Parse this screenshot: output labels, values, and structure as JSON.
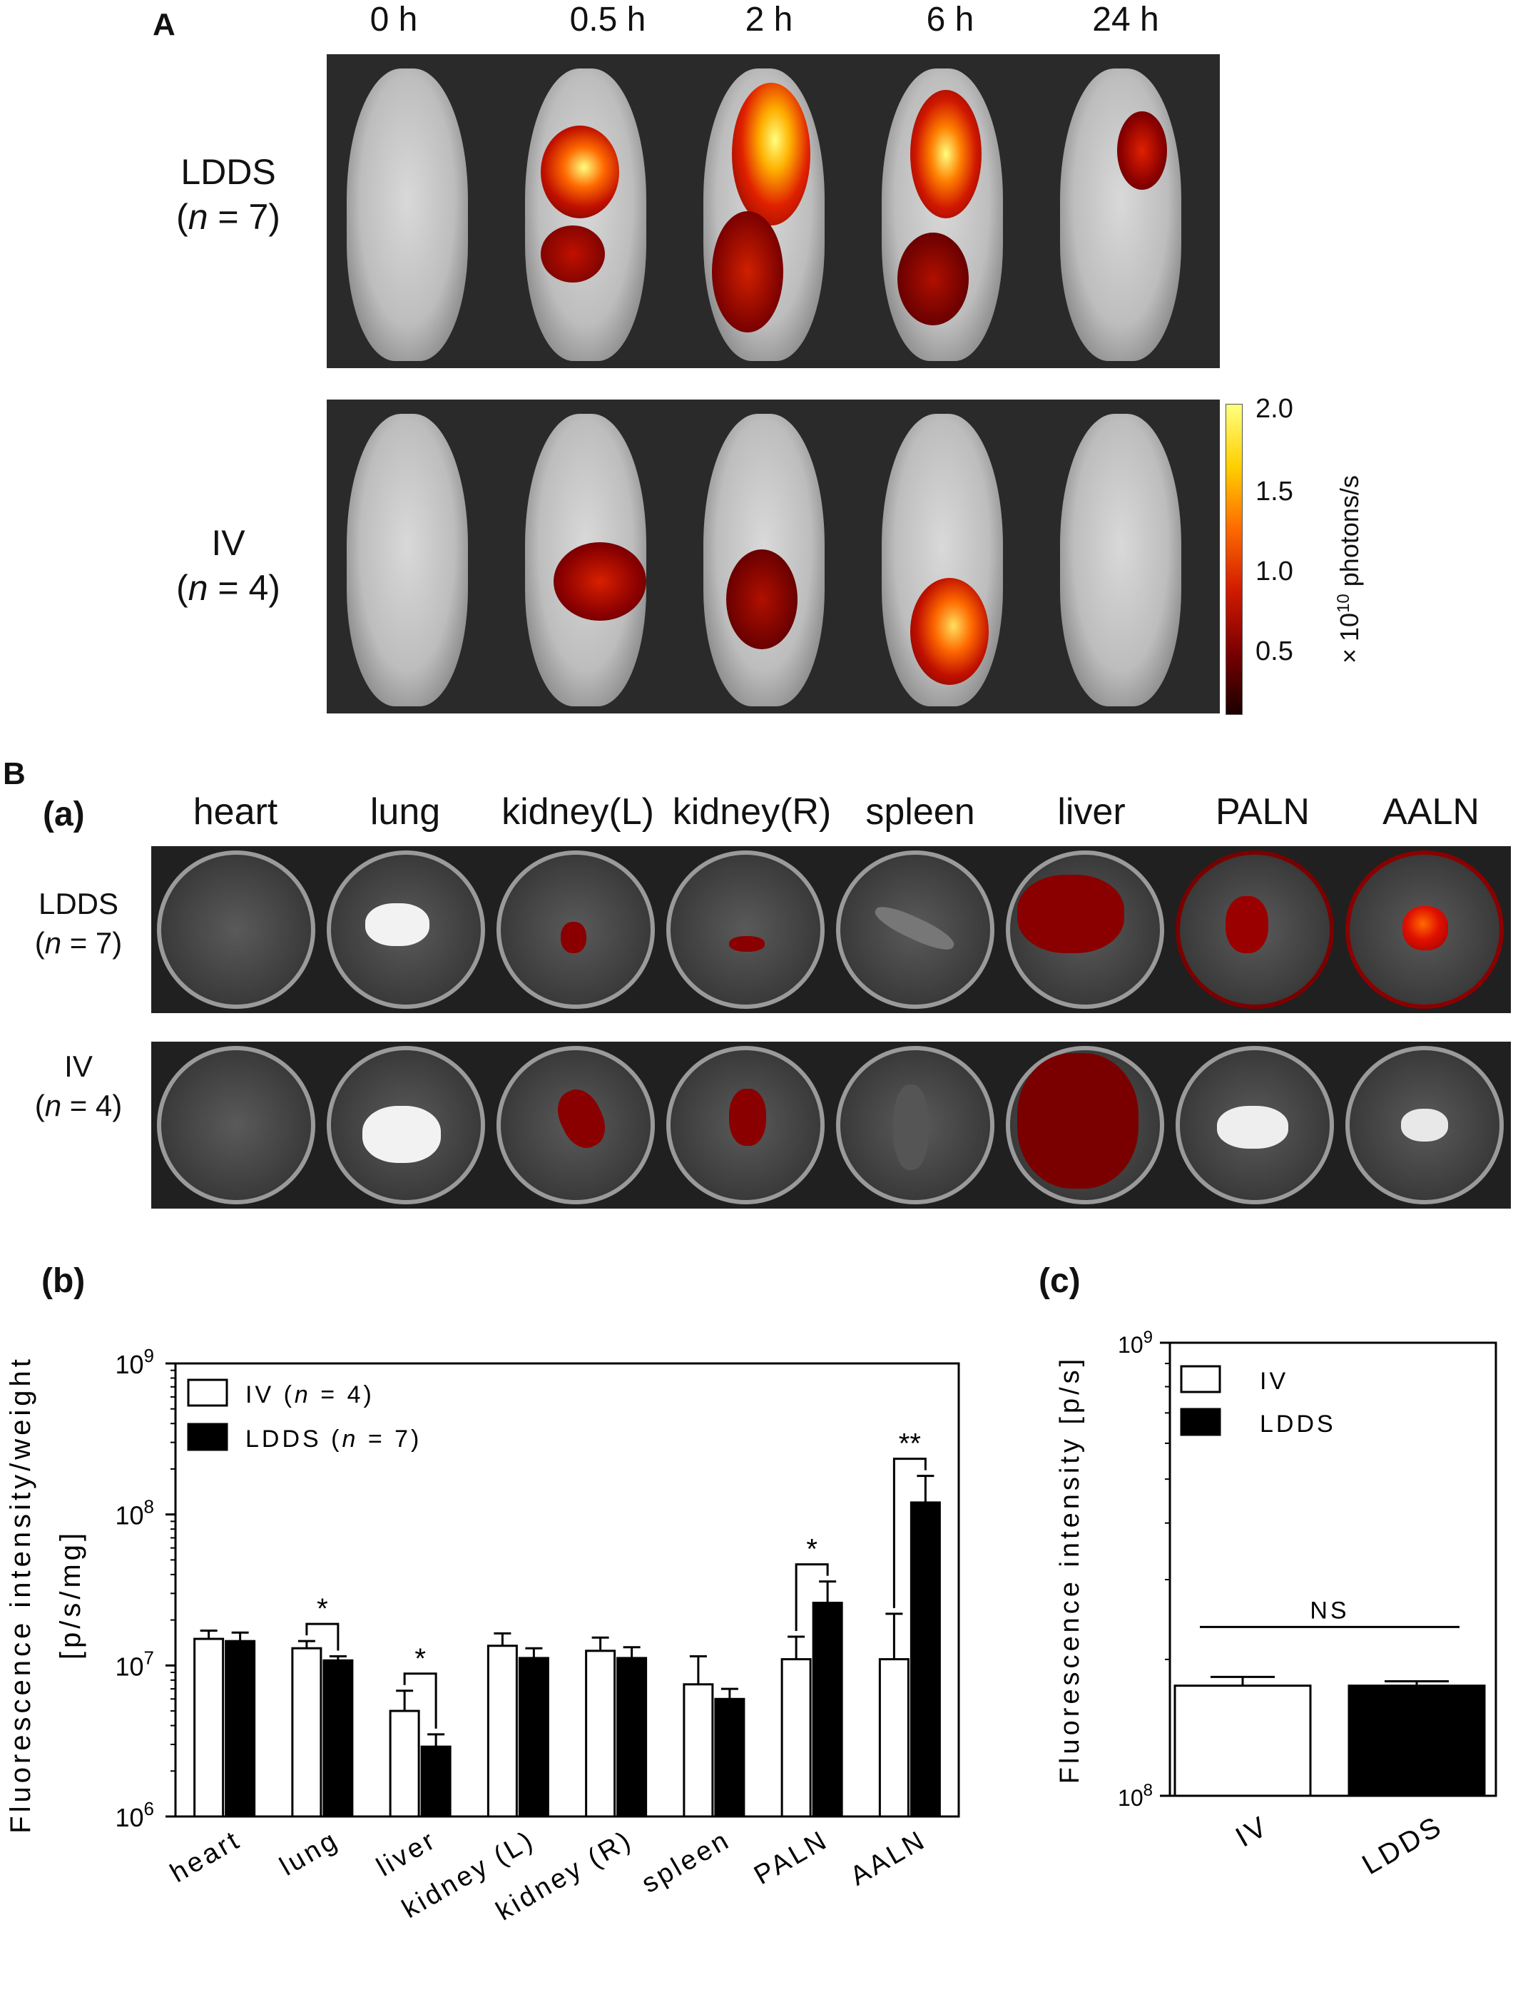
{
  "panelA": {
    "letter": "A",
    "times": [
      "0 h",
      "0.5 h",
      "2 h",
      "6 h",
      "24 h"
    ],
    "groups": [
      {
        "name": "LDDS",
        "n_open": "(",
        "n_var": "n",
        "n_rest": " = 7)"
      },
      {
        "name": "IV",
        "n_open": "(",
        "n_var": "n",
        "n_rest": " = 4)"
      }
    ],
    "colorbar": {
      "ticks": [
        "2.0",
        "1.5",
        "1.0",
        "0.5"
      ],
      "label_prefix": "× 10",
      "label_exp": "10",
      "label_suffix": " photons/s",
      "colors": [
        "#1a0000",
        "#7a0000",
        "#d11a00",
        "#ff6a00",
        "#ffd000",
        "#ffff80"
      ]
    }
  },
  "panelB": {
    "letter": "B",
    "sub_a": "(a)",
    "organs": [
      "heart",
      "lung",
      "kidney(L)",
      "kidney(R)",
      "spleen",
      "liver",
      "PALN",
      "AALN"
    ],
    "groups": [
      {
        "name": "LDDS",
        "n_open": "(",
        "n_var": "n",
        "n_rest": " = 7)"
      },
      {
        "name": "IV",
        "n_open": "(",
        "n_var": "n",
        "n_rest": " = 4)"
      }
    ]
  },
  "panelBb": {
    "letter": "(b)",
    "ylabel_line1": "Fluorescence intensity/weight",
    "ylabel_line2": "[p/s/mg]",
    "legend": [
      {
        "label": "IV (",
        "var": "n",
        "rest": " = 4)",
        "fill": "#ffffff"
      },
      {
        "label": "LDDS (",
        "var": "n",
        "rest": " = 7)",
        "fill": "#000000"
      }
    ]
  },
  "panelBc": {
    "letter": "(c)",
    "ylabel": "Fluorescence intensity [p/s]",
    "legend": [
      {
        "label": "IV",
        "fill": "#ffffff"
      },
      {
        "label": "LDDS",
        "fill": "#000000"
      }
    ]
  },
  "chart_data": [
    {
      "type": "bar",
      "title": "(b)",
      "ylabel": "Fluorescence intensity/weight [p/s/mg]",
      "yscale": "log",
      "ylim": [
        1000000,
        1000000000
      ],
      "yticks": [
        {
          "base": "10",
          "exp": "6"
        },
        {
          "base": "10",
          "exp": "7"
        },
        {
          "base": "10",
          "exp": "8"
        },
        {
          "base": "10",
          "exp": "9"
        }
      ],
      "categories": [
        "heart",
        "lung",
        "liver",
        "kidney (L)",
        "kidney (R)",
        "spleen",
        "PALN",
        "AALN"
      ],
      "series": [
        {
          "name": "IV (n = 4)",
          "values": [
            15000000,
            13000000,
            5000000,
            13500000,
            12500000,
            7500000,
            11000000,
            11000000
          ],
          "errors": [
            2000000,
            1500000,
            1800000,
            2800000,
            2800000,
            4000000,
            4500000,
            11000000
          ],
          "color": "#ffffff"
        },
        {
          "name": "LDDS (n = 7)",
          "values": [
            14500000,
            10800000,
            2900000,
            11200000,
            11200000,
            6000000,
            26000000,
            120000000
          ],
          "errors": [
            2000000,
            700000,
            600000,
            1800000,
            2000000,
            1000000,
            10000000,
            60000000
          ],
          "color": "#000000"
        }
      ],
      "significance": [
        {
          "category": "lung",
          "label": "*"
        },
        {
          "category": "liver",
          "label": "*"
        },
        {
          "category": "PALN",
          "label": "*"
        },
        {
          "category": "AALN",
          "label": "**"
        }
      ],
      "legend_position": "top-left"
    },
    {
      "type": "bar",
      "title": "(c)",
      "ylabel": "Fluorescence intensity [p/s]",
      "yscale": "log",
      "ylim": [
        100000000,
        1000000000
      ],
      "yticks": [
        {
          "base": "10",
          "exp": "8"
        },
        {
          "base": "10",
          "exp": "9"
        }
      ],
      "categories": [
        "IV",
        "LDDS"
      ],
      "values": [
        175000000,
        175000000
      ],
      "errors": [
        8000000,
        4000000
      ],
      "colors": [
        "#ffffff",
        "#000000"
      ],
      "significance": [
        {
          "between": [
            "IV",
            "LDDS"
          ],
          "label": "NS"
        }
      ],
      "legend_position": "top-left"
    }
  ]
}
